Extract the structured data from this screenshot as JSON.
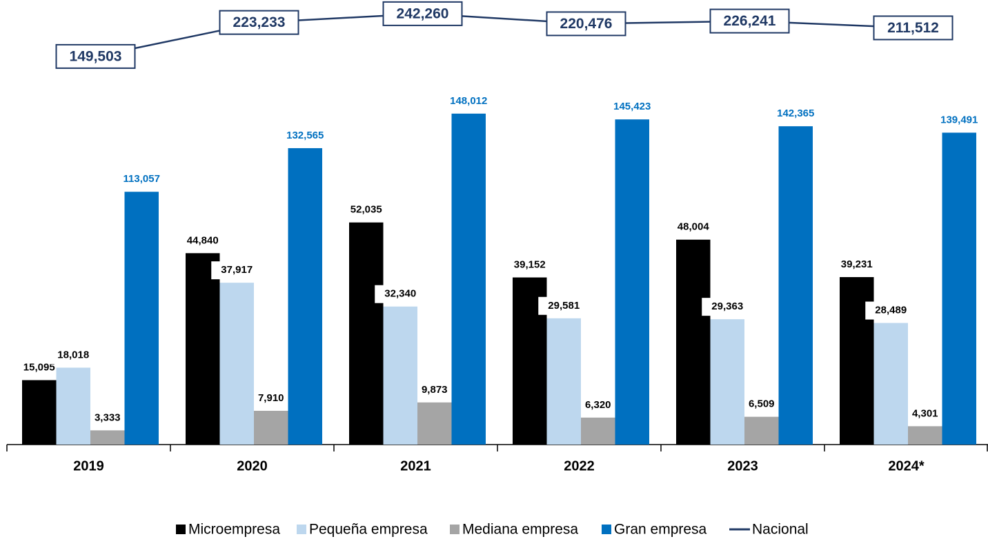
{
  "chart_data": {
    "type": "bar",
    "categories": [
      "2019",
      "2020",
      "2021",
      "2022",
      "2023",
      "2024*"
    ],
    "ylim": [
      0,
      88000
    ],
    "y2lim": [
      0,
      168000
    ],
    "y3lim": [
      100000,
      260000
    ],
    "legend": "bottom",
    "series": [
      {
        "name": "Microempresa",
        "color": "#000000",
        "values": [
          15095,
          44840,
          52035,
          39152,
          48004,
          39231
        ],
        "value_labels": [
          "15,095",
          "44,840",
          "52,035",
          "39,152",
          "48,004",
          "39,231"
        ]
      },
      {
        "name": "Pequeña empresa",
        "color": "#bdd7ee",
        "values": [
          18018,
          37917,
          32340,
          29581,
          29363,
          28489
        ],
        "value_labels": [
          "18,018",
          "37,917",
          "32,340",
          "29,581",
          "29,363",
          "28,489"
        ]
      },
      {
        "name": "Mediana empresa",
        "color": "#a5a5a5",
        "values": [
          3333,
          7910,
          9873,
          6320,
          6509,
          4301
        ],
        "value_labels": [
          "3,333",
          "7,910",
          "9,873",
          "6,320",
          "6,509",
          "4,301"
        ]
      },
      {
        "name": "Gran empresa",
        "color": "#0070c0",
        "axis": "y2",
        "values": [
          113057,
          132565,
          148012,
          145423,
          142365,
          139491
        ],
        "value_labels": [
          "113,057",
          "132,565",
          "148,012",
          "145,423",
          "142,365",
          "139,491"
        ]
      },
      {
        "name": "Nacional",
        "color": "#1f3864",
        "type": "line",
        "axis": "y3",
        "values": [
          149503,
          223233,
          242260,
          220476,
          226241,
          211512
        ],
        "value_labels": [
          "149,503",
          "223,233",
          "242,260",
          "220,476",
          "226,241",
          "211,512"
        ]
      }
    ]
  }
}
